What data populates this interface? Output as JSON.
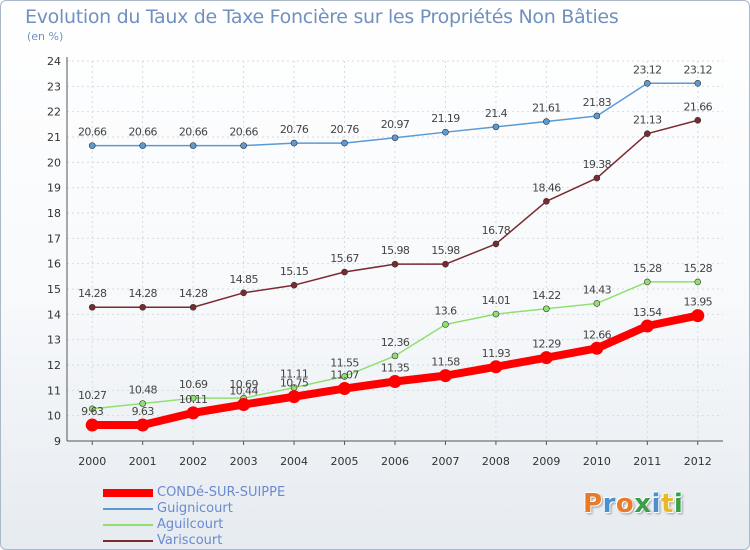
{
  "header": {
    "title": "Evolution du Taux de Taxe Foncière sur les Propriétés Non Bâties",
    "subtitle": "(en %)"
  },
  "logo": {
    "text": "Proxiti",
    "letters": [
      {
        "ch": "P",
        "color": "#e87a2a"
      },
      {
        "ch": "r",
        "color": "#4a8fd0"
      },
      {
        "ch": "o",
        "color": "#e87a2a"
      },
      {
        "ch": "x",
        "color": "#3aa048"
      },
      {
        "ch": "i",
        "color": "#4a8fd0"
      },
      {
        "ch": "t",
        "color": "#e8b82a"
      },
      {
        "ch": "i",
        "color": "#3aa048"
      }
    ]
  },
  "chart_data": {
    "type": "line",
    "title": "Evolution du Taux de Taxe Foncière sur les Propriétés Non Bâties",
    "ylabel": "(en %)",
    "xlabel": "",
    "ylim": [
      9,
      24
    ],
    "yticks": [
      "9",
      "10",
      "11",
      "12",
      "13",
      "14",
      "15",
      "16",
      "17",
      "18",
      "19",
      "20",
      "21",
      "22",
      "23",
      "24"
    ],
    "grid": true,
    "legend_position": "bottom-left",
    "x": [
      "2000",
      "2001",
      "2002",
      "2003",
      "2004",
      "2005",
      "2006",
      "2007",
      "2008",
      "2009",
      "2010",
      "2011",
      "2012"
    ],
    "series": [
      {
        "name": "CONDé-SUR-SUIPPE",
        "color": "#ff0000",
        "emphasis": true,
        "values": [
          9.63,
          9.63,
          10.11,
          10.44,
          10.75,
          11.07,
          11.35,
          11.58,
          11.93,
          12.29,
          12.66,
          13.54,
          13.95
        ],
        "labels": [
          "9.63",
          "9.63",
          "10.11",
          "10.44",
          "10.75",
          "11.07",
          "11.35",
          "11.58",
          "11.93",
          "12.29",
          "12.66",
          "13.54",
          "13.95"
        ]
      },
      {
        "name": "Guignicourt",
        "color": "#5a9ad5",
        "values": [
          20.66,
          20.66,
          20.66,
          20.66,
          20.76,
          20.76,
          20.97,
          21.19,
          21.4,
          21.61,
          21.83,
          23.12,
          23.12
        ],
        "labels": [
          "20.66",
          "20.66",
          "20.66",
          "20.66",
          "20.76",
          "20.76",
          "20.97",
          "21.19",
          "21.4",
          "21.61",
          "21.83",
          "23.12",
          "23.12"
        ]
      },
      {
        "name": "Aguilcourt",
        "color": "#90e070",
        "values": [
          10.27,
          10.48,
          10.69,
          10.69,
          11.11,
          11.55,
          12.36,
          13.6,
          14.01,
          14.22,
          14.43,
          15.28,
          15.28
        ],
        "labels": [
          "10.27",
          "10.48",
          "10.69",
          "10.69",
          "11.11",
          "11.55",
          "12.36",
          "13.6",
          "14.01",
          "14.22",
          "14.43",
          "15.28",
          "15.28"
        ]
      },
      {
        "name": "Variscourt",
        "color": "#7a2a30",
        "values": [
          14.28,
          14.28,
          14.28,
          14.85,
          15.15,
          15.67,
          15.98,
          15.98,
          16.78,
          18.46,
          19.38,
          21.13,
          21.66
        ],
        "labels": [
          "14.28",
          "14.28",
          "14.28",
          "14.85",
          "15.15",
          "15.67",
          "15.98",
          "15.98",
          "16.78",
          "18.46",
          "19.38",
          "21.13",
          "21.66"
        ]
      }
    ]
  }
}
